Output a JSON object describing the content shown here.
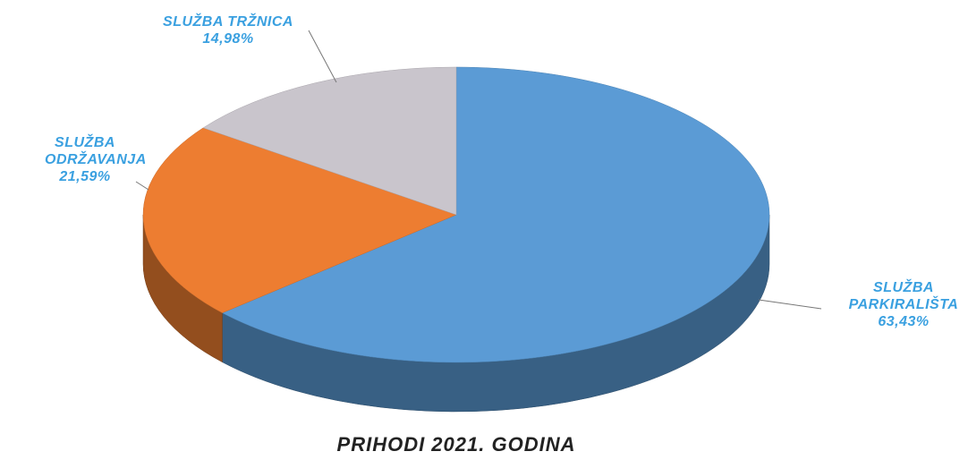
{
  "chart_data": {
    "type": "pie",
    "title": "PRIHODI  2021. GODINA",
    "categories": [
      "SLUŽBA PARKIRALIŠTA",
      "SLUŽBA ODRŽAVANJA",
      "SLUŽBA TRŽNICA"
    ],
    "values": [
      63.43,
      21.59,
      14.98
    ],
    "value_labels": [
      "63,43%",
      "21,59%",
      "14,98%"
    ],
    "colors": [
      "#5b9bd5",
      "#ed7d31",
      "#c9c5cc"
    ]
  }
}
